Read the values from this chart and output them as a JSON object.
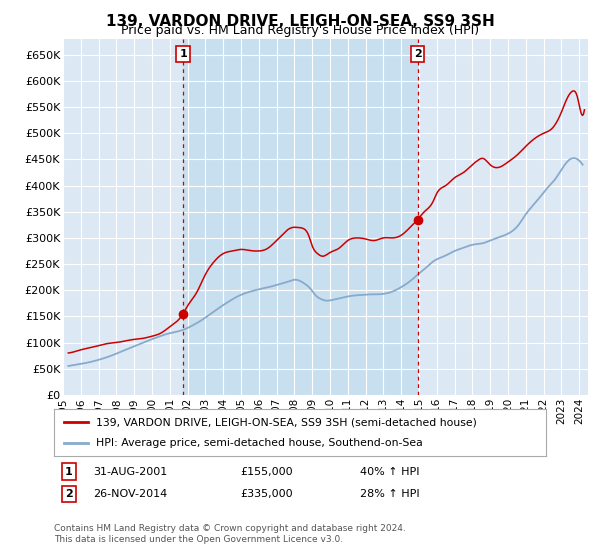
{
  "title": "139, VARDON DRIVE, LEIGH-ON-SEA, SS9 3SH",
  "subtitle": "Price paid vs. HM Land Registry's House Price Index (HPI)",
  "ylabel_ticks": [
    "£0",
    "£50K",
    "£100K",
    "£150K",
    "£200K",
    "£250K",
    "£300K",
    "£350K",
    "£400K",
    "£450K",
    "£500K",
    "£550K",
    "£600K",
    "£650K"
  ],
  "ytick_values": [
    0,
    50000,
    100000,
    150000,
    200000,
    250000,
    300000,
    350000,
    400000,
    450000,
    500000,
    550000,
    600000,
    650000
  ],
  "ylim": [
    0,
    680000
  ],
  "xlim_start": 1995.0,
  "xlim_end": 2024.5,
  "marker1_x": 2001.75,
  "marker1_y": 155000,
  "marker1_label": "1",
  "marker1_date": "31-AUG-2001",
  "marker1_price": "£155,000",
  "marker1_hpi": "40% ↑ HPI",
  "marker2_x": 2014.92,
  "marker2_y": 335000,
  "marker2_label": "2",
  "marker2_date": "26-NOV-2014",
  "marker2_price": "£335,000",
  "marker2_hpi": "28% ↑ HPI",
  "legend_line1": "139, VARDON DRIVE, LEIGH-ON-SEA, SS9 3SH (semi-detached house)",
  "legend_line2": "HPI: Average price, semi-detached house, Southend-on-Sea",
  "footer1": "Contains HM Land Registry data © Crown copyright and database right 2024.",
  "footer2": "This data is licensed under the Open Government Licence v3.0.",
  "price_color": "#cc0000",
  "hpi_color": "#88aacc",
  "marker_vline_color": "#cc0000",
  "background_color": "#ffffff",
  "plot_bg_color": "#dce9f5",
  "between_bg_color": "#c8dff0",
  "grid_color": "#ffffff",
  "title_fontsize": 11,
  "subtitle_fontsize": 9
}
